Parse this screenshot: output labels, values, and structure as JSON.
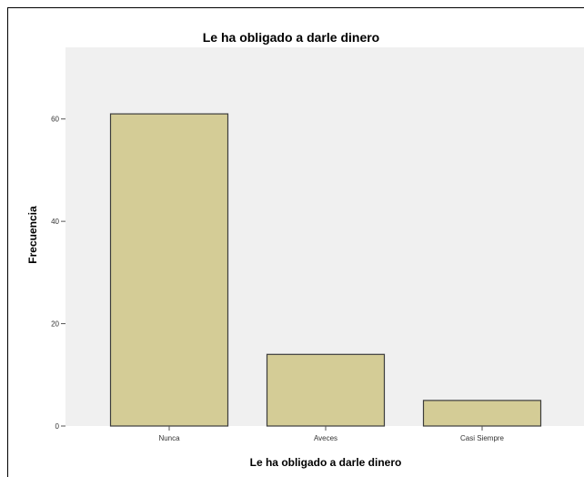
{
  "chart_data": {
    "type": "bar",
    "title": "Le ha obligado a darle dinero",
    "xlabel": "Le ha obligado a darle dinero",
    "ylabel": "Frecuencia",
    "categories": [
      "Nunca",
      "Aveces",
      "Casi Siempre"
    ],
    "values": [
      61,
      14,
      5
    ],
    "ylim": [
      0,
      74
    ],
    "yticks": [
      0,
      20,
      40,
      60
    ],
    "grid": false,
    "colors": {
      "bar_fill": "#d4cc96",
      "bar_stroke": "#3c3c3c",
      "plot_background": "#f0f0f0",
      "axis": "#555555"
    }
  }
}
